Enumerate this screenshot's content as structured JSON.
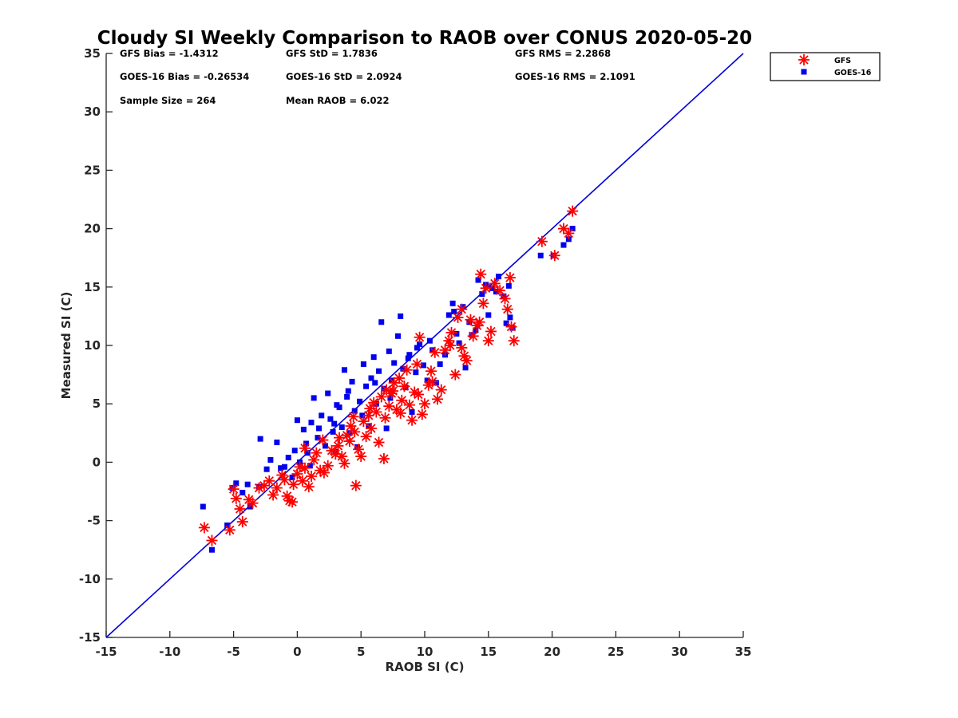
{
  "chart_data": {
    "type": "scatter",
    "title": "Cloudy SI Weekly Comparison to RAOB over CONUS 2020-05-20",
    "xlabel": "RAOB SI (C)",
    "ylabel": "Measured SI (C)",
    "xlim": [
      -15,
      35
    ],
    "ylim": [
      -15,
      35
    ],
    "xticks": [
      -15,
      -10,
      -5,
      0,
      5,
      10,
      15,
      20,
      25,
      30,
      35
    ],
    "yticks": [
      -15,
      -10,
      -5,
      0,
      5,
      10,
      15,
      20,
      25,
      30,
      35
    ],
    "grid": false,
    "legend_position": "outside-top-right",
    "reference_line": {
      "from": [
        -15,
        -15
      ],
      "to": [
        35,
        35
      ],
      "color": "#0000dd"
    },
    "stats": {
      "gfs_bias": "GFS Bias = -1.4312",
      "gfs_std": "GFS StD = 1.7836",
      "gfs_rms": "GFS RMS = 2.2868",
      "goes_bias": "GOES-16 Bias = -0.26534",
      "goes_std": "GOES-16 StD = 2.0924",
      "goes_rms": "GOES-16 RMS = 2.1091",
      "sample_size": "Sample Size = 264",
      "mean_raob": "Mean RAOB = 6.022"
    },
    "series": [
      {
        "name": "GFS",
        "marker": "asterisk",
        "color": "#ff0000",
        "points": [
          [
            -7.3,
            -5.6
          ],
          [
            -6.7,
            -6.7
          ],
          [
            -5.3,
            -5.8
          ],
          [
            -5.0,
            -2.3
          ],
          [
            -4.8,
            -3.1
          ],
          [
            -4.5,
            -4.0
          ],
          [
            -4.3,
            -5.1
          ],
          [
            -3.8,
            -3.2
          ],
          [
            -3.5,
            -3.5
          ],
          [
            -3.0,
            -2.2
          ],
          [
            -2.6,
            -2.0
          ],
          [
            -2.2,
            -1.6
          ],
          [
            -1.9,
            -2.8
          ],
          [
            -1.6,
            -2.2
          ],
          [
            -1.2,
            -1.1
          ],
          [
            -1.0,
            -1.5
          ],
          [
            -0.8,
            -2.9
          ],
          [
            -0.6,
            -3.3
          ],
          [
            -0.4,
            -3.4
          ],
          [
            -0.3,
            -1.9
          ],
          [
            0.0,
            -1.0
          ],
          [
            0.2,
            -0.4
          ],
          [
            0.4,
            -1.6
          ],
          [
            0.6,
            -0.5
          ],
          [
            0.9,
            -2.1
          ],
          [
            1.1,
            -1.2
          ],
          [
            1.3,
            0.2
          ],
          [
            1.5,
            0.8
          ],
          [
            1.8,
            -0.7
          ],
          [
            2.1,
            -0.9
          ],
          [
            2.4,
            -0.3
          ],
          [
            2.7,
            1.0
          ],
          [
            3.0,
            0.7
          ],
          [
            3.2,
            1.4
          ],
          [
            3.5,
            0.5
          ],
          [
            3.7,
            -0.1
          ],
          [
            3.9,
            2.3
          ],
          [
            4.1,
            1.8
          ],
          [
            4.2,
            3.1
          ],
          [
            4.5,
            2.6
          ],
          [
            4.6,
            -2.0
          ],
          [
            4.8,
            1.1
          ],
          [
            5.0,
            0.5
          ],
          [
            5.2,
            3.5
          ],
          [
            5.4,
            2.2
          ],
          [
            5.6,
            4.0
          ],
          [
            5.8,
            2.9
          ],
          [
            6.0,
            5.1
          ],
          [
            6.2,
            4.3
          ],
          [
            6.4,
            1.7
          ],
          [
            6.6,
            5.6
          ],
          [
            6.8,
            0.3
          ],
          [
            7.0,
            6.2
          ],
          [
            7.2,
            4.8
          ],
          [
            7.4,
            5.9
          ],
          [
            7.6,
            6.8
          ],
          [
            7.8,
            4.5
          ],
          [
            8.0,
            7.2
          ],
          [
            8.2,
            5.3
          ],
          [
            8.4,
            6.5
          ],
          [
            8.6,
            7.9
          ],
          [
            8.8,
            4.9
          ],
          [
            9.0,
            3.6
          ],
          [
            9.2,
            6.0
          ],
          [
            9.4,
            8.4
          ],
          [
            9.6,
            10.7
          ],
          [
            9.8,
            4.1
          ],
          [
            10.0,
            5.0
          ],
          [
            10.3,
            6.6
          ],
          [
            10.5,
            7.8
          ],
          [
            10.8,
            9.4
          ],
          [
            11.0,
            5.4
          ],
          [
            11.3,
            6.2
          ],
          [
            11.6,
            9.6
          ],
          [
            11.9,
            10.4
          ],
          [
            12.1,
            11.1
          ],
          [
            12.4,
            7.5
          ],
          [
            12.6,
            12.4
          ],
          [
            12.9,
            13.1
          ],
          [
            13.1,
            9.1
          ],
          [
            13.3,
            8.7
          ],
          [
            13.6,
            12.2
          ],
          [
            13.8,
            10.8
          ],
          [
            14.1,
            11.7
          ],
          [
            14.3,
            12.0
          ],
          [
            14.4,
            16.1
          ],
          [
            14.6,
            13.6
          ],
          [
            14.8,
            14.9
          ],
          [
            15.0,
            10.4
          ],
          [
            15.2,
            11.2
          ],
          [
            15.5,
            15.3
          ],
          [
            15.9,
            14.7
          ],
          [
            16.3,
            14.0
          ],
          [
            16.5,
            13.1
          ],
          [
            16.7,
            15.8
          ],
          [
            16.8,
            11.6
          ],
          [
            17.0,
            10.4
          ],
          [
            19.2,
            18.9
          ],
          [
            20.2,
            17.7
          ],
          [
            20.9,
            20.0
          ],
          [
            21.3,
            19.6
          ],
          [
            21.6,
            21.5
          ],
          [
            0.6,
            1.2
          ],
          [
            2.0,
            1.9
          ],
          [
            3.3,
            2.1
          ],
          [
            4.4,
            3.9
          ],
          [
            5.7,
            4.6
          ],
          [
            6.9,
            3.8
          ],
          [
            7.5,
            6.1
          ],
          [
            8.1,
            4.2
          ],
          [
            9.5,
            5.8
          ],
          [
            10.6,
            6.9
          ],
          [
            12.0,
            10.0
          ],
          [
            12.9,
            9.8
          ]
        ]
      },
      {
        "name": "GOES-16",
        "marker": "square",
        "color": "#0000ee",
        "points": [
          [
            -7.4,
            -3.8
          ],
          [
            -6.7,
            -7.5
          ],
          [
            -5.5,
            -5.4
          ],
          [
            -5.1,
            -2.2
          ],
          [
            -4.8,
            -1.8
          ],
          [
            -4.3,
            -2.6
          ],
          [
            -3.9,
            -1.9
          ],
          [
            -3.7,
            -3.8
          ],
          [
            -3.0,
            -2.1
          ],
          [
            -2.9,
            2.0
          ],
          [
            -2.4,
            -0.6
          ],
          [
            -2.1,
            0.2
          ],
          [
            -1.6,
            1.7
          ],
          [
            -1.3,
            -0.5
          ],
          [
            -1.0,
            -0.4
          ],
          [
            -0.7,
            0.4
          ],
          [
            -0.4,
            -1.3
          ],
          [
            -0.2,
            1.0
          ],
          [
            0.0,
            3.6
          ],
          [
            0.2,
            0.0
          ],
          [
            0.5,
            2.8
          ],
          [
            0.7,
            1.6
          ],
          [
            1.0,
            -0.3
          ],
          [
            1.1,
            3.4
          ],
          [
            1.3,
            5.5
          ],
          [
            1.6,
            2.1
          ],
          [
            1.9,
            4.0
          ],
          [
            2.2,
            1.4
          ],
          [
            2.4,
            5.9
          ],
          [
            2.6,
            3.7
          ],
          [
            2.8,
            2.6
          ],
          [
            3.0,
            0.9
          ],
          [
            3.3,
            4.7
          ],
          [
            3.5,
            3.0
          ],
          [
            3.7,
            7.9
          ],
          [
            3.9,
            5.6
          ],
          [
            4.1,
            2.5
          ],
          [
            4.3,
            6.9
          ],
          [
            4.5,
            4.4
          ],
          [
            4.7,
            1.3
          ],
          [
            4.9,
            5.2
          ],
          [
            5.2,
            8.4
          ],
          [
            5.4,
            6.5
          ],
          [
            5.6,
            3.1
          ],
          [
            5.8,
            7.2
          ],
          [
            6.0,
            9.0
          ],
          [
            6.2,
            5.0
          ],
          [
            6.4,
            7.8
          ],
          [
            6.6,
            12.0
          ],
          [
            6.8,
            6.3
          ],
          [
            7.0,
            2.9
          ],
          [
            7.2,
            9.5
          ],
          [
            7.4,
            7.0
          ],
          [
            7.6,
            8.5
          ],
          [
            7.9,
            10.8
          ],
          [
            8.1,
            12.5
          ],
          [
            8.3,
            8.0
          ],
          [
            8.5,
            6.4
          ],
          [
            8.8,
            9.2
          ],
          [
            9.0,
            4.3
          ],
          [
            9.3,
            7.7
          ],
          [
            9.6,
            10.1
          ],
          [
            9.9,
            8.3
          ],
          [
            10.2,
            7.0
          ],
          [
            10.6,
            9.6
          ],
          [
            10.9,
            6.8
          ],
          [
            11.2,
            8.4
          ],
          [
            11.6,
            9.2
          ],
          [
            11.9,
            12.6
          ],
          [
            12.2,
            13.6
          ],
          [
            12.5,
            11.0
          ],
          [
            12.7,
            10.2
          ],
          [
            13.0,
            13.3
          ],
          [
            13.2,
            8.1
          ],
          [
            13.5,
            12.0
          ],
          [
            13.7,
            10.9
          ],
          [
            14.0,
            11.3
          ],
          [
            14.2,
            15.6
          ],
          [
            14.5,
            14.4
          ],
          [
            14.8,
            15.2
          ],
          [
            15.0,
            12.6
          ],
          [
            15.3,
            14.9
          ],
          [
            15.6,
            14.6
          ],
          [
            15.8,
            15.9
          ],
          [
            16.2,
            14.2
          ],
          [
            16.4,
            11.9
          ],
          [
            16.6,
            15.1
          ],
          [
            16.7,
            12.4
          ],
          [
            16.9,
            11.5
          ],
          [
            19.1,
            17.7
          ],
          [
            20.1,
            17.7
          ],
          [
            20.9,
            18.6
          ],
          [
            21.3,
            19.1
          ],
          [
            21.6,
            20.0
          ],
          [
            0.8,
            0.8
          ],
          [
            1.7,
            2.9
          ],
          [
            2.9,
            3.3
          ],
          [
            3.1,
            4.9
          ],
          [
            4.0,
            6.1
          ],
          [
            5.1,
            4.0
          ],
          [
            6.1,
            6.8
          ],
          [
            7.3,
            5.5
          ],
          [
            8.7,
            8.9
          ],
          [
            9.4,
            9.8
          ],
          [
            10.4,
            10.4
          ],
          [
            12.3,
            12.9
          ]
        ]
      }
    ]
  }
}
